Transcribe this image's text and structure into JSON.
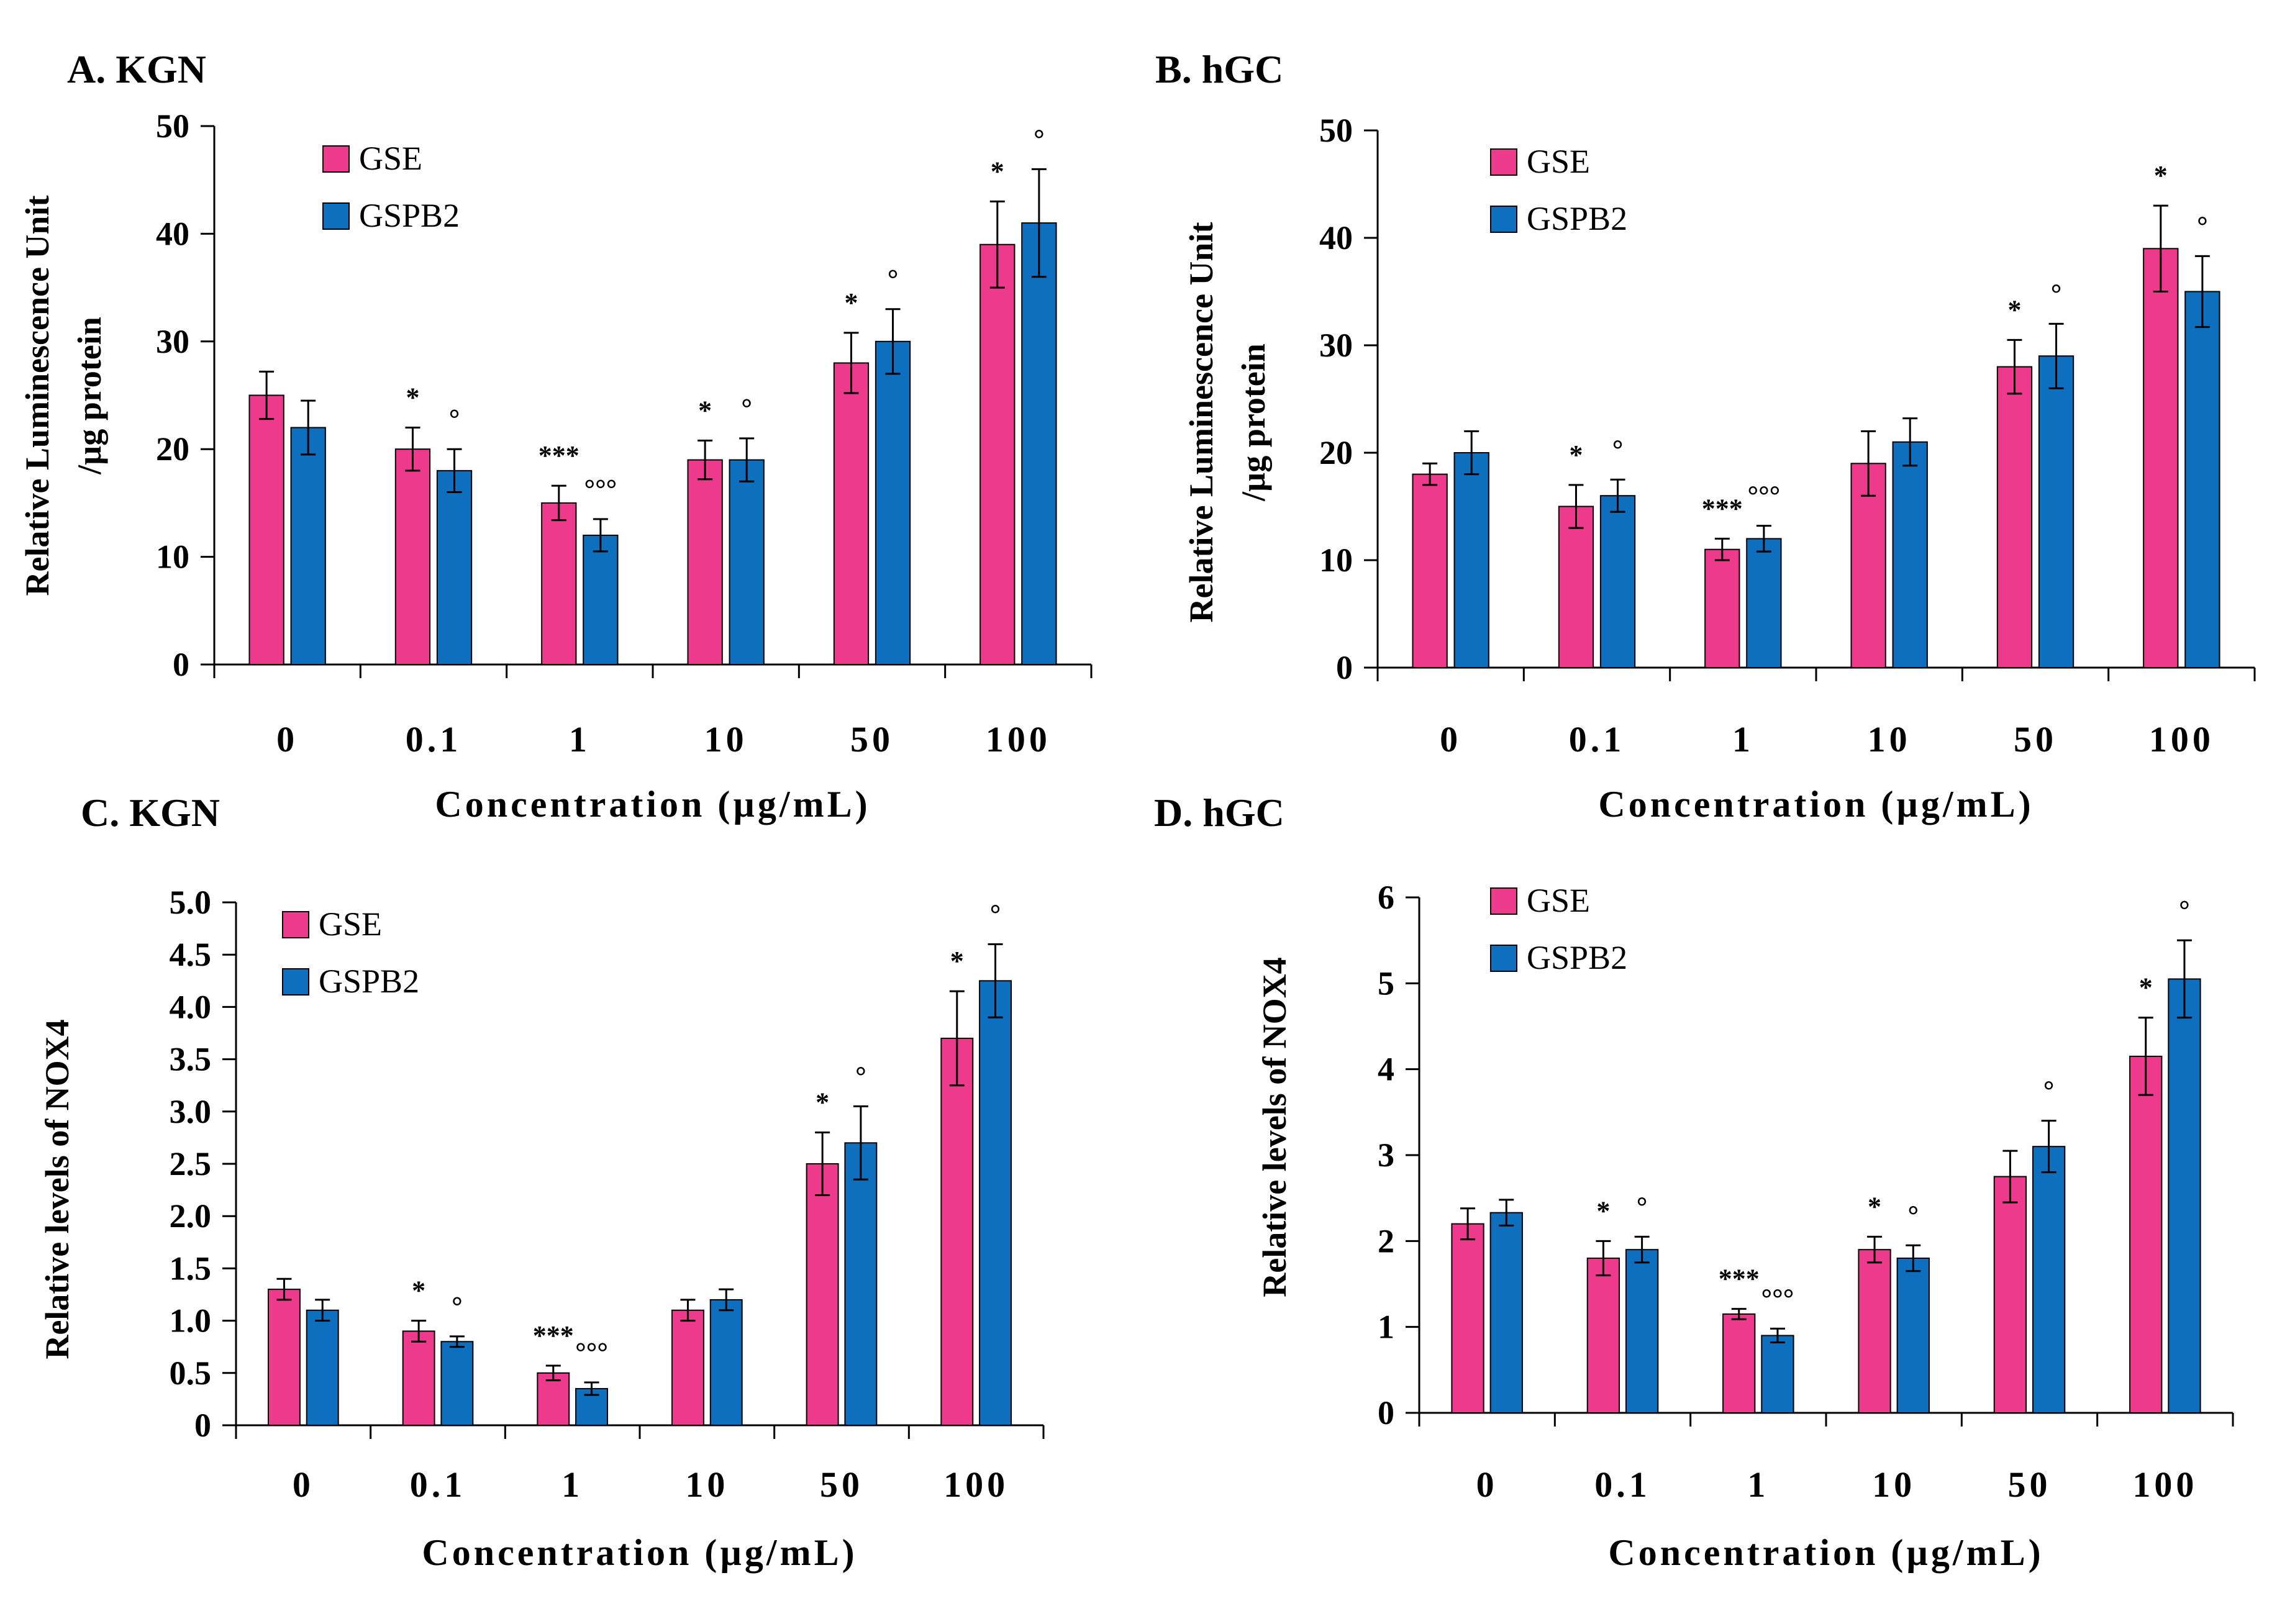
{
  "colors": {
    "GSE": "#EE3A8C",
    "GSPB2": "#0F6FBF"
  },
  "legend": [
    "GSE",
    "GSPB2"
  ],
  "chart_data": [
    {
      "type": "bar",
      "title": "A. KGN",
      "categories": [
        "0",
        "0.1",
        "1",
        "10",
        "50",
        "100"
      ],
      "xlabel": "Concentration (µg/mL)",
      "ylabel": [
        "Relative Luminescence Unit",
        "/µg protein"
      ],
      "ylim": [
        0,
        50
      ],
      "yticks": [
        "0",
        "10",
        "20",
        "30",
        "40",
        "50"
      ],
      "series": [
        {
          "name": "GSE",
          "values": [
            25,
            20,
            15,
            19,
            28,
            39
          ],
          "errors": [
            2.2,
            2.0,
            1.6,
            1.8,
            2.8,
            4.0
          ],
          "markers": [
            "",
            "*",
            "***",
            "*",
            "*",
            "*"
          ]
        },
        {
          "name": "GSPB2",
          "values": [
            22,
            18,
            12,
            19,
            30,
            41
          ],
          "errors": [
            2.5,
            2.0,
            1.5,
            2.0,
            3.0,
            5.0
          ],
          "markers": [
            "",
            "°",
            "°°°",
            "°",
            "°",
            "°"
          ]
        }
      ]
    },
    {
      "type": "bar",
      "title": "B. hGC",
      "categories": [
        "0",
        "0.1",
        "1",
        "10",
        "50",
        "100"
      ],
      "xlabel": "Concentration (µg/mL)",
      "ylabel": [
        "Relative Luminescence Unit",
        "/µg protein"
      ],
      "ylim": [
        0,
        50
      ],
      "yticks": [
        "0",
        "10",
        "20",
        "30",
        "40",
        "50"
      ],
      "series": [
        {
          "name": "GSE",
          "values": [
            18,
            15,
            11,
            19,
            28,
            39
          ],
          "errors": [
            1.0,
            2.0,
            1.0,
            3.0,
            2.5,
            4.0
          ],
          "markers": [
            "",
            "*",
            "***",
            "",
            "*",
            "*"
          ]
        },
        {
          "name": "GSPB2",
          "values": [
            20,
            16,
            12,
            21,
            29,
            35
          ],
          "errors": [
            2.0,
            1.5,
            1.2,
            2.2,
            3.0,
            3.3
          ],
          "markers": [
            "",
            "°",
            "°°°",
            "",
            "°",
            "°"
          ]
        }
      ]
    },
    {
      "type": "bar",
      "title": "C. KGN",
      "categories": [
        "0",
        "0.1",
        "1",
        "10",
        "50",
        "100"
      ],
      "xlabel": "Concentration (µg/mL)",
      "ylabel": [
        "Relative levels of NOX4"
      ],
      "ylim": [
        0,
        5
      ],
      "yticks": [
        "0",
        "0.5",
        "1.0",
        "1.5",
        "2.0",
        "2.5",
        "3.0",
        "3.5",
        "4.0",
        "4.5",
        "5.0"
      ],
      "series": [
        {
          "name": "GSE",
          "values": [
            1.3,
            0.9,
            0.5,
            1.1,
            2.5,
            3.7
          ],
          "errors": [
            0.1,
            0.1,
            0.07,
            0.1,
            0.3,
            0.45
          ],
          "markers": [
            "",
            "*",
            "***",
            "",
            "*",
            "*"
          ]
        },
        {
          "name": "GSPB2",
          "values": [
            1.1,
            0.8,
            0.35,
            1.2,
            2.7,
            4.25
          ],
          "errors": [
            0.1,
            0.05,
            0.06,
            0.1,
            0.35,
            0.35
          ],
          "markers": [
            "",
            "°",
            "°°°",
            "",
            "°",
            "°"
          ]
        }
      ]
    },
    {
      "type": "bar",
      "title": "D. hGC",
      "categories": [
        "0",
        "0.1",
        "1",
        "10",
        "50",
        "100"
      ],
      "xlabel": "Concentration (µg/mL)",
      "ylabel": [
        "Relative levels of NOX4"
      ],
      "ylim": [
        0,
        6
      ],
      "yticks": [
        "0",
        "1",
        "2",
        "3",
        "4",
        "5",
        "6"
      ],
      "series": [
        {
          "name": "GSE",
          "values": [
            2.2,
            1.8,
            1.15,
            1.9,
            2.75,
            4.15
          ],
          "errors": [
            0.18,
            0.2,
            0.06,
            0.15,
            0.3,
            0.45
          ],
          "markers": [
            "",
            "*",
            "***",
            "*",
            "",
            "*"
          ]
        },
        {
          "name": "GSPB2",
          "values": [
            2.33,
            1.9,
            0.9,
            1.8,
            3.1,
            5.05
          ],
          "errors": [
            0.15,
            0.15,
            0.08,
            0.15,
            0.3,
            0.45
          ],
          "markers": [
            "",
            "°",
            "°°°",
            "°",
            "°",
            "°"
          ]
        }
      ]
    }
  ]
}
